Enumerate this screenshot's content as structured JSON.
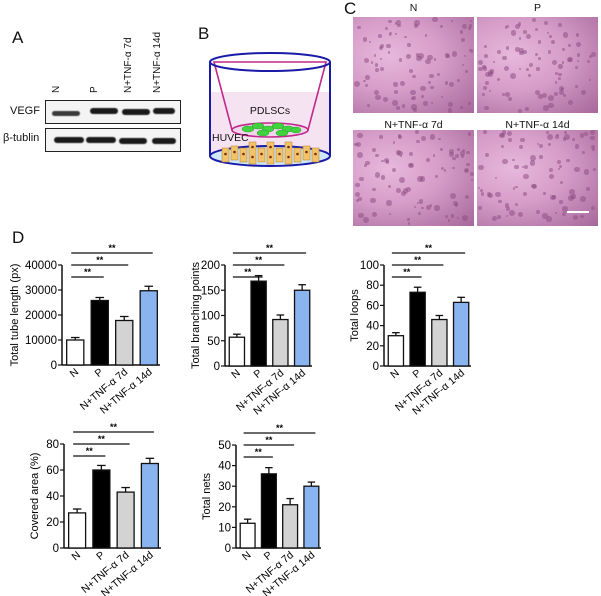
{
  "panels": {
    "A": {
      "letter": "A",
      "lanes": [
        "N",
        "P",
        "N+TNF-α 7d",
        "N+TNF-α 14d"
      ],
      "rows": [
        "VEGF",
        "β-tublin"
      ]
    },
    "B": {
      "letter": "B",
      "labels": {
        "upper": "PDLSCs",
        "lower": "HUVEC"
      }
    },
    "C": {
      "letter": "C",
      "images": [
        {
          "title": "N"
        },
        {
          "title": "P"
        },
        {
          "title": "N+TNF-α 7d"
        },
        {
          "title": "N+TNF-α 14d"
        }
      ]
    },
    "D": {
      "letter": "D"
    }
  },
  "colors": {
    "N": "#ffffff",
    "P": "#000000",
    "N_TNF_7d": "#d3d3d3",
    "N_TNF_14d": "#8ab4f0",
    "blot_band": "#1a1a1a",
    "well_outline": "#1a1aa8",
    "insert_outline": "#c0288a",
    "pdlsc_cell": "#3fd43f",
    "huvec_cell": "#f2c36b"
  },
  "chart_data": [
    {
      "type": "bar",
      "title": "",
      "xlabel": "",
      "ylabel": "Total tube length (px)",
      "categories": [
        "N",
        "P",
        "N+TNF-α 7d",
        "N+TNF-α 14d"
      ],
      "values": [
        10000,
        25800,
        17800,
        29700
      ],
      "errors": [
        1000,
        1200,
        1600,
        1800
      ],
      "ylim": [
        0,
        40000
      ],
      "yticks": [
        0,
        10000,
        20000,
        30000,
        40000
      ],
      "significance": [
        {
          "from": "N",
          "to": "P",
          "label": "**"
        },
        {
          "from": "N",
          "to": "N+TNF-α 7d",
          "label": "**"
        },
        {
          "from": "N",
          "to": "N+TNF-α 14d",
          "label": "**"
        }
      ],
      "grid": false
    },
    {
      "type": "bar",
      "title": "",
      "xlabel": "",
      "ylabel": "Total branching points",
      "categories": [
        "N",
        "P",
        "N+TNF-α 7d",
        "N+TNF-α 14d"
      ],
      "values": [
        57,
        168,
        92,
        150
      ],
      "errors": [
        6,
        11,
        9,
        11
      ],
      "ylim": [
        0,
        200
      ],
      "yticks": [
        0,
        50,
        100,
        150,
        200
      ],
      "significance": [
        {
          "from": "N",
          "to": "P",
          "label": "**"
        },
        {
          "from": "N",
          "to": "N+TNF-α 7d",
          "label": "**"
        },
        {
          "from": "N",
          "to": "N+TNF-α 14d",
          "label": "**"
        }
      ],
      "grid": false
    },
    {
      "type": "bar",
      "title": "",
      "xlabel": "",
      "ylabel": "Total loops",
      "categories": [
        "N",
        "P",
        "N+TNF-α 7d",
        "N+TNF-α 14d"
      ],
      "values": [
        30,
        73,
        46,
        63
      ],
      "errors": [
        3,
        5,
        4,
        5
      ],
      "ylim": [
        0,
        100
      ],
      "yticks": [
        0,
        20,
        40,
        60,
        80,
        100
      ],
      "significance": [
        {
          "from": "N",
          "to": "P",
          "label": "**"
        },
        {
          "from": "N",
          "to": "N+TNF-α 7d",
          "label": "**"
        },
        {
          "from": "N",
          "to": "N+TNF-α 14d",
          "label": "**"
        }
      ],
      "grid": false
    },
    {
      "type": "bar",
      "title": "",
      "xlabel": "",
      "ylabel": "Covered area (%)",
      "categories": [
        "N",
        "P",
        "N+TNF-α 7d",
        "N+TNF-α 14d"
      ],
      "values": [
        27,
        60,
        43,
        65
      ],
      "errors": [
        3,
        3.5,
        3.5,
        4
      ],
      "ylim": [
        0,
        80
      ],
      "yticks": [
        0,
        20,
        40,
        60,
        80
      ],
      "significance": [
        {
          "from": "N",
          "to": "P",
          "label": "**"
        },
        {
          "from": "N",
          "to": "N+TNF-α 7d",
          "label": "**"
        },
        {
          "from": "N",
          "to": "N+TNF-α 14d",
          "label": "**"
        }
      ],
      "grid": false
    },
    {
      "type": "bar",
      "title": "",
      "xlabel": "",
      "ylabel": "Total nets",
      "categories": [
        "N",
        "P",
        "N+TNF-α 7d",
        "N+TNF-α 14d"
      ],
      "values": [
        12,
        36,
        21,
        30
      ],
      "errors": [
        2,
        3,
        3,
        2
      ],
      "ylim": [
        0,
        50
      ],
      "yticks": [
        0,
        10,
        20,
        30,
        40,
        50
      ],
      "significance": [
        {
          "from": "N",
          "to": "P",
          "label": "**"
        },
        {
          "from": "N",
          "to": "N+TNF-α 7d",
          "label": "**"
        },
        {
          "from": "N",
          "to": "N+TNF-α 14d",
          "label": "**"
        }
      ],
      "grid": false
    }
  ]
}
